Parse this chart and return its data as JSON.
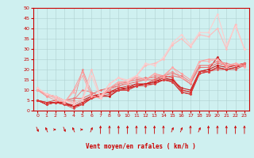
{
  "background_color": "#cff0f0",
  "grid_color": "#b0d0d0",
  "axis_color": "#cc0000",
  "xlabel": "Vent moyen/en rafales ( km/h )",
  "xlabel_color": "#cc0000",
  "xlim": [
    -0.5,
    23.5
  ],
  "ylim": [
    0,
    50
  ],
  "yticks": [
    0,
    5,
    10,
    15,
    20,
    25,
    30,
    35,
    40,
    45,
    50
  ],
  "xticks": [
    0,
    1,
    2,
    3,
    4,
    5,
    6,
    7,
    8,
    9,
    10,
    11,
    12,
    13,
    14,
    15,
    16,
    17,
    18,
    19,
    20,
    21,
    22,
    23
  ],
  "lines": [
    {
      "x": [
        0,
        1,
        2,
        3,
        4,
        5,
        6,
        7,
        8,
        9,
        10,
        11,
        12,
        13,
        14,
        15,
        16,
        17,
        18,
        19,
        20,
        21,
        22,
        23
      ],
      "y": [
        5,
        3,
        4,
        4,
        2,
        3,
        6,
        7,
        7,
        10,
        10,
        12,
        13,
        13,
        15,
        14,
        9,
        8,
        18,
        19,
        21,
        20,
        21,
        23
      ],
      "color": "#cc0000",
      "lw": 0.8,
      "marker": "D",
      "ms": 1.5
    },
    {
      "x": [
        0,
        1,
        2,
        3,
        4,
        5,
        6,
        7,
        8,
        9,
        10,
        11,
        12,
        13,
        14,
        15,
        16,
        17,
        18,
        19,
        20,
        21,
        22,
        23
      ],
      "y": [
        5,
        3,
        4,
        3,
        2,
        4,
        6,
        8,
        9,
        10,
        11,
        12,
        13,
        14,
        15,
        15,
        10,
        9,
        19,
        20,
        22,
        21,
        22,
        23
      ],
      "color": "#cc0000",
      "lw": 0.7,
      "marker": "D",
      "ms": 1.5
    },
    {
      "x": [
        0,
        1,
        2,
        3,
        4,
        5,
        6,
        7,
        8,
        9,
        10,
        11,
        12,
        13,
        14,
        15,
        16,
        17,
        18,
        19,
        20,
        21,
        22,
        23
      ],
      "y": [
        5,
        4,
        4,
        3,
        3,
        5,
        7,
        8,
        9,
        11,
        11,
        13,
        13,
        14,
        16,
        15,
        11,
        10,
        19,
        20,
        26,
        21,
        22,
        23
      ],
      "color": "#cc2222",
      "lw": 0.8,
      "marker": "D",
      "ms": 1.5
    },
    {
      "x": [
        0,
        1,
        2,
        3,
        4,
        5,
        6,
        7,
        8,
        9,
        10,
        11,
        12,
        13,
        14,
        15,
        16,
        17,
        18,
        19,
        20,
        21,
        22,
        23
      ],
      "y": [
        5,
        4,
        5,
        3,
        2,
        4,
        7,
        8,
        9,
        11,
        12,
        13,
        13,
        15,
        17,
        16,
        10,
        9,
        19,
        19,
        21,
        20,
        21,
        22
      ],
      "color": "#dd3333",
      "lw": 0.6,
      "marker": "D",
      "ms": 1.5
    },
    {
      "x": [
        0,
        1,
        2,
        3,
        4,
        5,
        6,
        7,
        8,
        9,
        10,
        11,
        12,
        13,
        14,
        15,
        16,
        17,
        18,
        19,
        20,
        21,
        22,
        23
      ],
      "y": [
        5,
        3,
        4,
        3,
        1,
        3,
        6,
        7,
        8,
        10,
        10,
        12,
        12,
        13,
        15,
        14,
        9,
        8,
        18,
        19,
        20,
        20,
        20,
        22
      ],
      "color": "#dd4444",
      "lw": 0.6,
      "marker": "D",
      "ms": 1.5
    },
    {
      "x": [
        0,
        1,
        2,
        3,
        4,
        5,
        6,
        7,
        8,
        9,
        10,
        11,
        12,
        13,
        14,
        15,
        16,
        17,
        18,
        19,
        20,
        21,
        22,
        23
      ],
      "y": [
        10,
        8,
        7,
        5,
        6,
        6,
        8,
        10,
        11,
        12,
        13,
        14,
        15,
        15,
        16,
        17,
        16,
        13,
        21,
        21,
        23,
        22,
        22,
        23
      ],
      "color": "#ee6666",
      "lw": 0.7,
      "marker": "D",
      "ms": 1.5
    },
    {
      "x": [
        0,
        1,
        2,
        3,
        4,
        5,
        6,
        7,
        8,
        9,
        10,
        11,
        12,
        13,
        14,
        15,
        16,
        17,
        18,
        19,
        20,
        21,
        22,
        23
      ],
      "y": [
        10,
        7,
        7,
        5,
        5,
        10,
        9,
        7,
        11,
        13,
        14,
        15,
        16,
        16,
        17,
        18,
        17,
        14,
        22,
        22,
        24,
        23,
        22,
        23
      ],
      "color": "#ee7777",
      "lw": 0.6,
      "marker": "D",
      "ms": 1.5
    },
    {
      "x": [
        0,
        1,
        2,
        3,
        4,
        5,
        6,
        7,
        8,
        9,
        10,
        11,
        12,
        13,
        14,
        15,
        16,
        17,
        18,
        19,
        20,
        21,
        22,
        23
      ],
      "y": [
        10,
        8,
        6,
        5,
        4,
        20,
        9,
        7,
        10,
        12,
        14,
        15,
        15,
        17,
        17,
        19,
        16,
        13,
        22,
        22,
        24,
        22,
        22,
        22
      ],
      "color": "#ee8888",
      "lw": 0.6,
      "marker": "D",
      "ms": 1.5
    },
    {
      "x": [
        0,
        1,
        2,
        3,
        4,
        5,
        6,
        7,
        8,
        9,
        10,
        11,
        12,
        13,
        14,
        15,
        16,
        17,
        18,
        19,
        20,
        21,
        22,
        23
      ],
      "y": [
        10,
        7,
        5,
        4,
        10,
        19,
        7,
        6,
        11,
        14,
        14,
        16,
        15,
        18,
        17,
        21,
        18,
        15,
        24,
        25,
        25,
        22,
        23,
        22
      ],
      "color": "#ff9999",
      "lw": 0.7,
      "marker": "D",
      "ms": 1.5
    },
    {
      "x": [
        0,
        1,
        2,
        3,
        4,
        5,
        6,
        7,
        8,
        9,
        10,
        11,
        12,
        13,
        14,
        15,
        16,
        17,
        18,
        19,
        20,
        21,
        22,
        23
      ],
      "y": [
        10,
        8,
        6,
        4,
        9,
        17,
        7,
        6,
        11,
        14,
        13,
        17,
        15,
        18,
        16,
        21,
        16,
        14,
        24,
        24,
        25,
        21,
        23,
        21
      ],
      "color": "#ffaaaa",
      "lw": 0.6,
      "marker": "D",
      "ms": 1.5
    },
    {
      "x": [
        0,
        1,
        2,
        3,
        4,
        5,
        6,
        7,
        8,
        9,
        10,
        11,
        12,
        13,
        14,
        15,
        16,
        17,
        18,
        19,
        20,
        21,
        22,
        23
      ],
      "y": [
        11,
        8,
        6,
        5,
        4,
        6,
        20,
        7,
        13,
        16,
        14,
        17,
        22,
        23,
        25,
        32,
        35,
        31,
        37,
        36,
        40,
        30,
        42,
        30
      ],
      "color": "#ffbbbb",
      "lw": 0.8,
      "marker": "D",
      "ms": 1.5
    },
    {
      "x": [
        0,
        1,
        2,
        3,
        4,
        5,
        6,
        7,
        8,
        9,
        10,
        11,
        12,
        13,
        14,
        15,
        16,
        17,
        18,
        19,
        20,
        21,
        22,
        23
      ],
      "y": [
        11,
        8,
        7,
        5,
        3,
        5,
        17,
        6,
        13,
        16,
        15,
        17,
        23,
        22,
        26,
        33,
        37,
        32,
        38,
        38,
        47,
        32,
        41,
        30
      ],
      "color": "#ffcccc",
      "lw": 0.8,
      "marker": "D",
      "ms": 1.5
    }
  ],
  "wind_directions": [
    45,
    225,
    0,
    45,
    225,
    0,
    315,
    270,
    270,
    270,
    270,
    270,
    270,
    270,
    270,
    315,
    315,
    270,
    315,
    270,
    270,
    270,
    270,
    270
  ]
}
